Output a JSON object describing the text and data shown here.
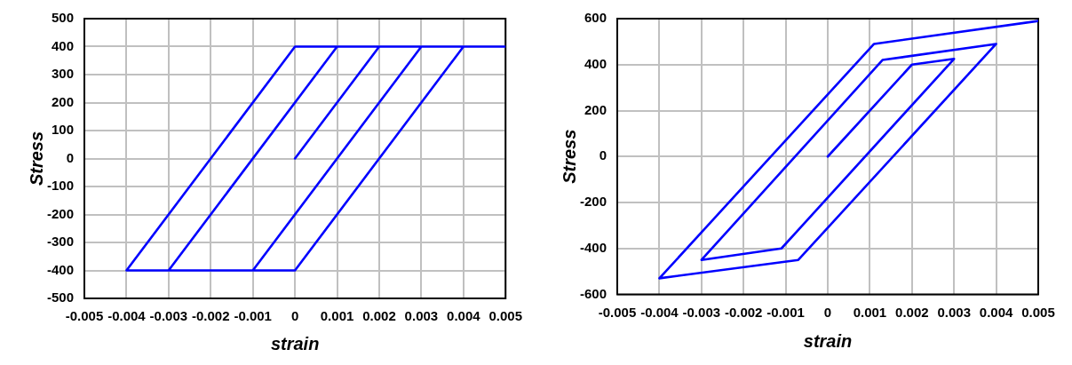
{
  "chart_data": [
    {
      "type": "line",
      "xlabel": "strain",
      "ylabel": "Stress",
      "xlim": [
        -0.005,
        0.005
      ],
      "xticks": [
        -0.005,
        -0.004,
        -0.003,
        -0.002,
        -0.001,
        0,
        0.001,
        0.002,
        0.003,
        0.004,
        0.005
      ],
      "ylim": [
        -500,
        500
      ],
      "yticks": [
        -500,
        -400,
        -300,
        -200,
        -100,
        0,
        100,
        200,
        300,
        400,
        500
      ],
      "grid": true,
      "legend": false,
      "marker": "none",
      "series": [
        {
          "color": "#0000ff",
          "x": [
            0,
            0.002,
            0.003,
            -0.001,
            -0.003,
            0.001,
            0.004,
            0,
            -0.004,
            0,
            0.005
          ],
          "values": [
            0,
            400,
            400,
            -400,
            -400,
            400,
            400,
            -400,
            -400,
            400,
            400
          ]
        }
      ]
    },
    {
      "type": "line",
      "xlabel": "strain",
      "ylabel": "Stress",
      "xlim": [
        -0.005,
        0.005
      ],
      "xticks": [
        -0.005,
        -0.004,
        -0.003,
        -0.002,
        -0.001,
        0,
        0.001,
        0.002,
        0.003,
        0.004,
        0.005
      ],
      "ylim": [
        -600,
        600
      ],
      "yticks": [
        -600,
        -400,
        -200,
        0,
        200,
        400,
        600
      ],
      "grid": true,
      "legend": false,
      "marker": "none",
      "series": [
        {
          "color": "#0000ff",
          "x": [
            0,
            0.002,
            0.003,
            -0.0011,
            -0.003,
            0.0013,
            0.004,
            -0.0007,
            -0.004,
            0.0011,
            0.005
          ],
          "values": [
            0,
            400,
            425,
            -400,
            -450,
            420,
            490,
            -450,
            -530,
            490,
            590
          ]
        }
      ]
    }
  ]
}
